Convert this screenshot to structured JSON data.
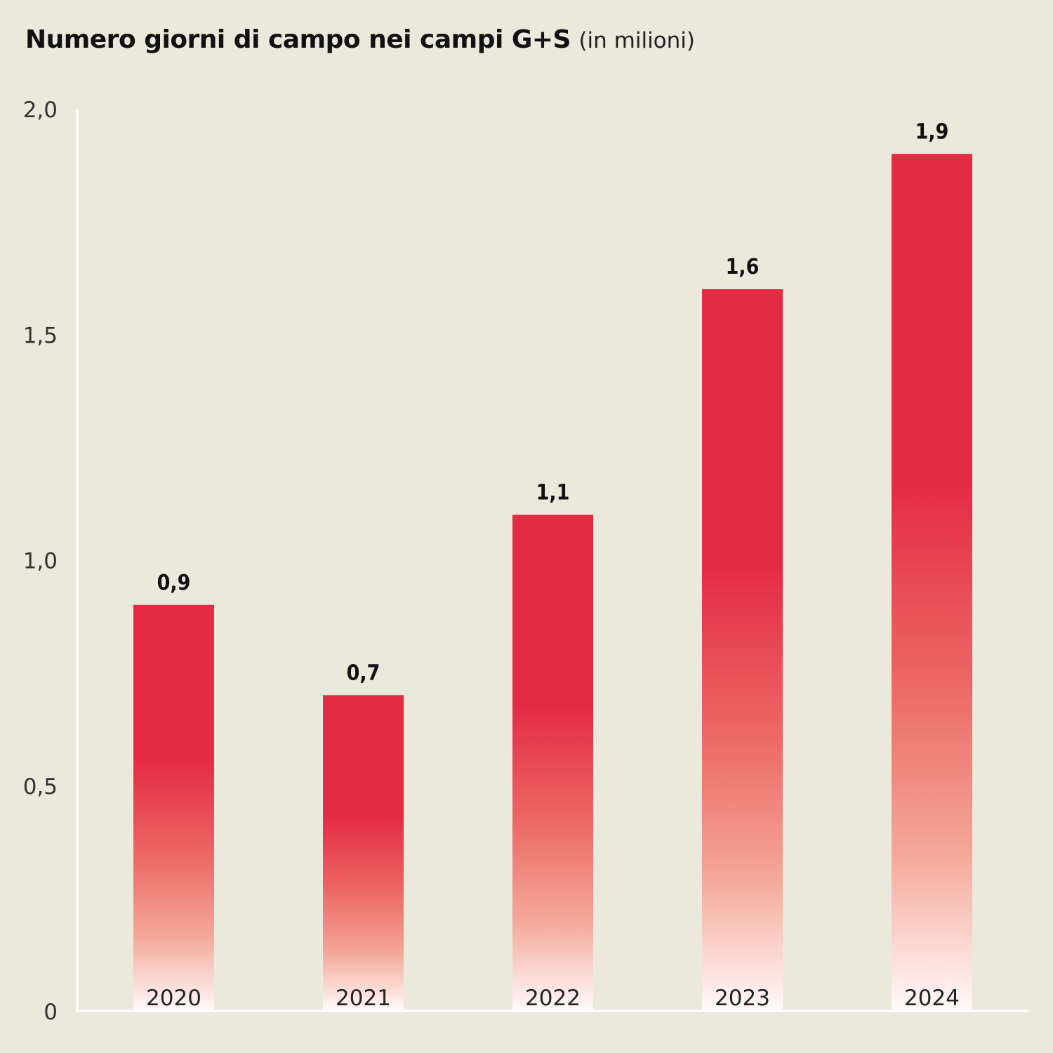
{
  "chart_data": {
    "type": "bar",
    "title": "Numero giorni di campo nei campi G+S",
    "subtitle": "(in milioni)",
    "categories": [
      "2020",
      "2021",
      "2022",
      "2023",
      "2024"
    ],
    "values": [
      0.9,
      0.7,
      1.1,
      1.6,
      1.9
    ],
    "value_labels": [
      "0,9",
      "0,7",
      "1,1",
      "1,6",
      "1,9"
    ],
    "ylim": [
      0,
      2.0
    ],
    "yticks": [
      0,
      0.5,
      1.0,
      1.5,
      2.0
    ],
    "ytick_labels": [
      "0",
      "0,5",
      "1,0",
      "1,5",
      "2,0"
    ],
    "xlabel": "",
    "ylabel": "",
    "grid": false,
    "colors": {
      "bar_top": "#e52a44",
      "bar_bottom": "#ffffff",
      "background": "#ebe8dc",
      "axis": "#ffffff"
    }
  }
}
